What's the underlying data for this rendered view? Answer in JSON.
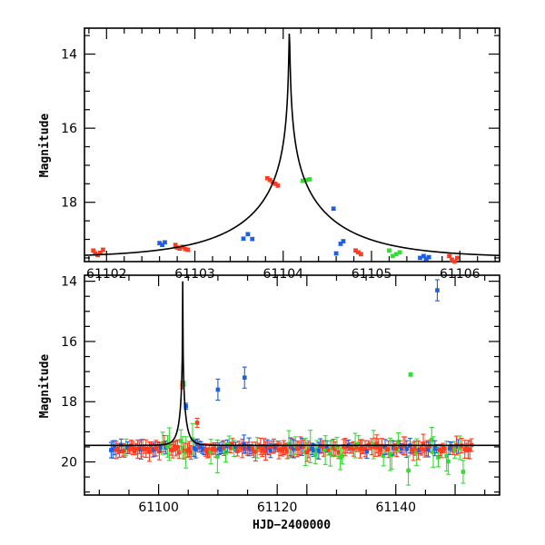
{
  "chart_data": [
    {
      "type": "scatter",
      "ylabel": "Magnitude",
      "xlabel": "",
      "xlim": [
        61101.75,
        61106.45
      ],
      "ylim": [
        19.6,
        13.3
      ],
      "x_ticks": [
        61102,
        61103,
        61104,
        61105,
        61106
      ],
      "y_ticks": [
        14,
        16,
        18
      ],
      "model": {
        "type": "microlensing",
        "t0": 61104.07,
        "peak_mag": 13.4,
        "baseline_mag": 19.5,
        "description": "model light curve"
      },
      "series": [
        {
          "name": "red",
          "color": "#ff3b1f",
          "points": [
            [
              61101.85,
              19.3
            ],
            [
              61101.87,
              19.38
            ],
            [
              61101.9,
              19.42
            ],
            [
              61101.93,
              19.36
            ],
            [
              61101.96,
              19.28
            ],
            [
              61102.78,
              19.15
            ],
            [
              61102.8,
              19.22
            ],
            [
              61102.83,
              19.25
            ],
            [
              61102.86,
              19.2
            ],
            [
              61102.89,
              19.26
            ],
            [
              61102.92,
              19.28
            ],
            [
              61103.82,
              17.35
            ],
            [
              61103.85,
              17.4
            ],
            [
              61103.88,
              17.45
            ],
            [
              61103.91,
              17.5
            ],
            [
              61103.94,
              17.55
            ],
            [
              61104.82,
              19.3
            ],
            [
              61104.85,
              19.35
            ],
            [
              61104.88,
              19.4
            ],
            [
              61105.88,
              19.45
            ],
            [
              61105.91,
              19.55
            ],
            [
              61105.94,
              19.6
            ],
            [
              61105.97,
              19.5
            ]
          ]
        },
        {
          "name": "blue",
          "color": "#1a5fe6",
          "points": [
            [
              61102.6,
              19.1
            ],
            [
              61102.63,
              19.15
            ],
            [
              61102.66,
              19.08
            ],
            [
              61103.55,
              18.98
            ],
            [
              61103.6,
              18.86
            ],
            [
              61103.65,
              18.99
            ],
            [
              61104.57,
              18.17
            ],
            [
              61104.6,
              19.38
            ],
            [
              61104.65,
              19.12
            ],
            [
              61104.68,
              19.05
            ],
            [
              61105.55,
              19.5
            ],
            [
              61105.59,
              19.45
            ],
            [
              61105.62,
              19.52
            ],
            [
              61105.65,
              19.48
            ]
          ]
        },
        {
          "name": "green",
          "color": "#33dd33",
          "points": [
            [
              61104.22,
              17.42
            ],
            [
              61104.26,
              17.4
            ],
            [
              61104.3,
              17.38
            ],
            [
              61105.2,
              19.3
            ],
            [
              61105.24,
              19.45
            ],
            [
              61105.28,
              19.4
            ],
            [
              61105.32,
              19.35
            ]
          ]
        }
      ]
    },
    {
      "type": "scatter",
      "ylabel": "Magnitude",
      "xlabel": "HJD−2400000",
      "xlim": [
        61087.5,
        61157.5
      ],
      "ylim": [
        21.1,
        13.8
      ],
      "x_ticks": [
        61100,
        61120,
        61140
      ],
      "y_ticks": [
        14,
        16,
        18,
        20
      ],
      "model": {
        "type": "microlensing",
        "t0": 61104.07,
        "peak_mag": 13.9,
        "baseline_mag": 19.45,
        "description": "model light curve"
      },
      "highlighted_points": [
        {
          "series": "blue",
          "x": 61147,
          "y": 14.3
        },
        {
          "series": "green",
          "x": 61142.5,
          "y": 17.1
        },
        {
          "series": "blue",
          "x": 61114.5,
          "y": 17.2
        },
        {
          "series": "blue",
          "x": 61110,
          "y": 17.6
        }
      ],
      "series": [
        {
          "name": "red",
          "color": "#ff3b1f"
        },
        {
          "name": "blue",
          "color": "#1a5fe6"
        },
        {
          "name": "green",
          "color": "#33dd33"
        }
      ]
    }
  ]
}
